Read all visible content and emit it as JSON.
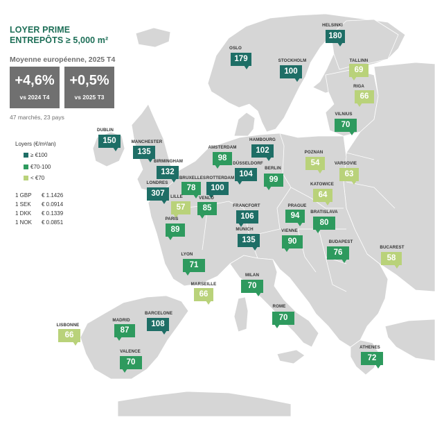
{
  "header": {
    "title_line1": "LOYER PRIME",
    "title_line2": "ENTREPÔTS ≥ 5,000 m²",
    "subtitle": "Moyenne européenne, 2025 T4",
    "kpis": [
      {
        "value": "+4,6%",
        "label": "vs 2024 T4"
      },
      {
        "value": "+0,5%",
        "label": "vs 2025 T3"
      }
    ],
    "footnote": "47 marchés, 23 pays"
  },
  "legend": {
    "title": "Loyers (€/m²/an)",
    "items": [
      {
        "label": "≥ €100",
        "color": "#1e6e66"
      },
      {
        "label": "€70-100",
        "color": "#2e9a5e"
      },
      {
        "label": "< €70",
        "color": "#b9d27a"
      }
    ]
  },
  "exchange_rates": [
    {
      "currency": "1 GBP",
      "value": "€ 1.1426"
    },
    {
      "currency": "1 SEK",
      "value": "€ 0.0914"
    },
    {
      "currency": "1 DKK",
      "value": "€ 0.1339"
    },
    {
      "currency": "1 NOK",
      "value": "€ 0.0851"
    }
  ],
  "colors": {
    "land": "#d6d6d6",
    "sea": "#ffffff",
    "border": "#ffffff"
  },
  "markets": [
    {
      "city": "HELSINKI",
      "rent": 180
    },
    {
      "city": "OSLO",
      "rent": 179
    },
    {
      "city": "STOCKHOLM",
      "rent": 100
    },
    {
      "city": "TALLINN",
      "rent": 69
    },
    {
      "city": "RIGA",
      "rent": 66
    },
    {
      "city": "VILNIUS",
      "rent": 70
    },
    {
      "city": "DUBLIN",
      "rent": 150
    },
    {
      "city": "MANCHESTER",
      "rent": 135
    },
    {
      "city": "BIRMINGHAM",
      "rent": 132
    },
    {
      "city": "LONDRES",
      "rent": 307
    },
    {
      "city": "AMSTERDAM",
      "rent": 98
    },
    {
      "city": "HAMBOURG",
      "rent": 102
    },
    {
      "city": "DÜSSELDORF",
      "rent": 104
    },
    {
      "city": "BERLIN",
      "rent": 99
    },
    {
      "city": "POZNAN",
      "rent": 54
    },
    {
      "city": "VARSOVIE",
      "rent": 63
    },
    {
      "city": "BRUXELLES",
      "rent": 78
    },
    {
      "city": "ROTTERDAM",
      "rent": 100
    },
    {
      "city": "LILLE",
      "rent": 57
    },
    {
      "city": "VENLO",
      "rent": 85
    },
    {
      "city": "KATOWICE",
      "rent": 64
    },
    {
      "city": "PARIS",
      "rent": 89
    },
    {
      "city": "FRANCFORT",
      "rent": 106
    },
    {
      "city": "PRAGUE",
      "rent": 94
    },
    {
      "city": "BRATISLAVA",
      "rent": 80
    },
    {
      "city": "MUNICH",
      "rent": 135
    },
    {
      "city": "VIENNE",
      "rent": 90
    },
    {
      "city": "BUDAPEST",
      "rent": 76
    },
    {
      "city": "BUCAREST",
      "rent": 58
    },
    {
      "city": "LYON",
      "rent": 71
    },
    {
      "city": "MILAN",
      "rent": 70
    },
    {
      "city": "MARSEILLE",
      "rent": 66
    },
    {
      "city": "ROME",
      "rent": 70
    },
    {
      "city": "LISBONNE",
      "rent": 66
    },
    {
      "city": "MADRID",
      "rent": 87
    },
    {
      "city": "BARCELONE",
      "rent": 108
    },
    {
      "city": "VALENCE",
      "rent": 70
    },
    {
      "city": "ATHENES",
      "rent": 72
    }
  ]
}
